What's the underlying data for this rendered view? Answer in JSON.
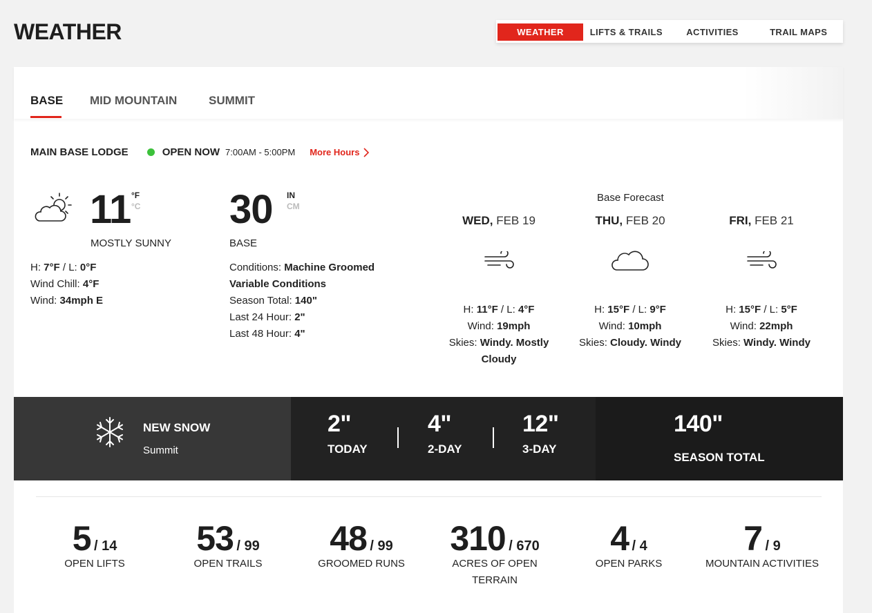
{
  "page": {
    "title": "WEATHER"
  },
  "top_nav": {
    "tabs": [
      "WEATHER",
      "LIFTS & TRAILS",
      "ACTIVITIES",
      "TRAIL MAPS"
    ],
    "active": "WEATHER"
  },
  "location_tabs": {
    "tabs": [
      "BASE",
      "MID MOUNTAIN",
      "SUMMIT"
    ],
    "active": "BASE"
  },
  "lodge": {
    "name": "MAIN BASE LODGE",
    "status": "OPEN NOW",
    "hours": "7:00AM - 5:00PM",
    "more_hours": "More Hours"
  },
  "current": {
    "icon": "partly-cloudy-icon",
    "temp": "11",
    "unit_f": "°F",
    "unit_c": "°C",
    "condition": "MOSTLY SUNNY",
    "high_label": "H: ",
    "high": "7°F",
    "low_label": " / L: ",
    "low": "0°F",
    "wind_chill_label": "Wind Chill: ",
    "wind_chill": "4°F",
    "wind_label": "Wind: ",
    "wind": "34mph E"
  },
  "base_depth": {
    "value": "30",
    "unit_in": "IN",
    "unit_cm": "CM",
    "label": "BASE",
    "conditions_label": "Conditions: ",
    "conditions_1": "Machine Groomed",
    "conditions_2": "Variable Conditions",
    "season_total_label": "Season Total: ",
    "season_total": "140\"",
    "last24_label": "Last 24 Hour: ",
    "last24": "2\"",
    "last48_label": "Last 48 Hour: ",
    "last48": "4\""
  },
  "forecast": {
    "title": "Base Forecast",
    "days": [
      {
        "dow": "WED,",
        "date": "FEB 19",
        "icon": "wind-icon",
        "high": "11°F",
        "low": "4°F",
        "wind": "19mph",
        "skies_1": "Windy. Mostly",
        "skies_2": "Cloudy"
      },
      {
        "dow": "THU,",
        "date": "FEB 20",
        "icon": "cloud-icon",
        "high": "15°F",
        "low": "9°F",
        "wind": "10mph",
        "skies_1": "Cloudy. Windy",
        "skies_2": ""
      },
      {
        "dow": "FRI,",
        "date": "FEB 21",
        "icon": "wind-icon",
        "high": "15°F",
        "low": "5°F",
        "wind": "22mph",
        "skies_1": "Windy. Windy",
        "skies_2": ""
      }
    ],
    "labels": {
      "h": "H: ",
      "l": " / L: ",
      "wind": "Wind: ",
      "skies": "Skies: "
    }
  },
  "new_snow": {
    "title": "NEW SNOW",
    "location": "Summit",
    "today_value": "2\"",
    "today_label": "TODAY",
    "two_day_value": "4\"",
    "two_day_label": "2-DAY",
    "three_day_value": "12\"",
    "three_day_label": "3-DAY",
    "season_value": "140\"",
    "season_label": "SEASON TOTAL"
  },
  "stats": [
    {
      "value": "5",
      "total": "/ 14",
      "label": "OPEN LIFTS",
      "label_2": ""
    },
    {
      "value": "53",
      "total": "/ 99",
      "label": "OPEN TRAILS",
      "label_2": ""
    },
    {
      "value": "48",
      "total": "/ 99",
      "label": "GROOMED RUNS",
      "label_2": ""
    },
    {
      "value": "310",
      "total": "/ 670",
      "label": "ACRES OF OPEN",
      "label_2": "TERRAIN"
    },
    {
      "value": "4",
      "total": "/ 4",
      "label": "OPEN PARKS",
      "label_2": ""
    },
    {
      "value": "7",
      "total": "/ 9",
      "label": "MOUNTAIN ACTIVITIES",
      "label_2": ""
    }
  ]
}
